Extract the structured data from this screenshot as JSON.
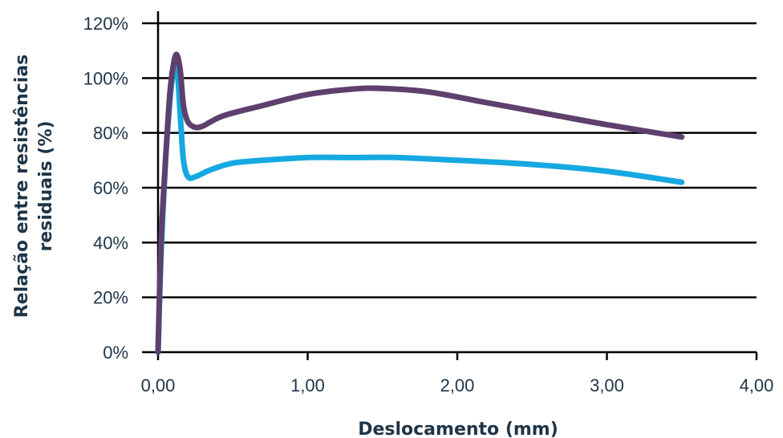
{
  "chart_data": {
    "type": "line",
    "xlabel": "Deslocamento (mm)",
    "ylabel_lines": [
      "Relação entre resistências",
      "residuais (%)"
    ],
    "xlim": [
      0,
      4
    ],
    "ylim": [
      0,
      1.2
    ],
    "x_ticks": [
      {
        "value": 0,
        "label": "0,00"
      },
      {
        "value": 1,
        "label": "1,00"
      },
      {
        "value": 2,
        "label": "2,00"
      },
      {
        "value": 3,
        "label": "3,00"
      },
      {
        "value": 4,
        "label": "4,00"
      }
    ],
    "y_ticks": [
      {
        "value": 0,
        "label": "0%"
      },
      {
        "value": 0.2,
        "label": "20%"
      },
      {
        "value": 0.4,
        "label": "40%"
      },
      {
        "value": 0.6,
        "label": "60%"
      },
      {
        "value": 0.8,
        "label": "80%"
      },
      {
        "value": 1.0,
        "label": "100%"
      },
      {
        "value": 1.2,
        "label": "120%"
      }
    ],
    "grid": "horizontal",
    "series": [
      {
        "color": "#16a9e1",
        "x": [
          0,
          0.02,
          0.05,
          0.08,
          0.11,
          0.13,
          0.15,
          0.17,
          0.2,
          0.25,
          0.35,
          0.5,
          0.7,
          1.0,
          1.3,
          1.6,
          2.0,
          2.5,
          3.0,
          3.5
        ],
        "y": [
          0,
          0.35,
          0.7,
          0.92,
          1.05,
          1.02,
          0.85,
          0.7,
          0.64,
          0.64,
          0.665,
          0.69,
          0.7,
          0.71,
          0.71,
          0.71,
          0.7,
          0.685,
          0.66,
          0.62
        ]
      },
      {
        "color": "#5e406d",
        "x": [
          0,
          0.02,
          0.05,
          0.08,
          0.11,
          0.13,
          0.15,
          0.17,
          0.2,
          0.25,
          0.3,
          0.35,
          0.45,
          0.7,
          1.0,
          1.3,
          1.5,
          1.8,
          2.2,
          2.6,
          3.0,
          3.5
        ],
        "y": [
          0,
          0.4,
          0.7,
          0.95,
          1.07,
          1.08,
          1.02,
          0.9,
          0.84,
          0.82,
          0.825,
          0.84,
          0.865,
          0.9,
          0.94,
          0.96,
          0.962,
          0.95,
          0.91,
          0.87,
          0.83,
          0.785
        ]
      }
    ]
  }
}
